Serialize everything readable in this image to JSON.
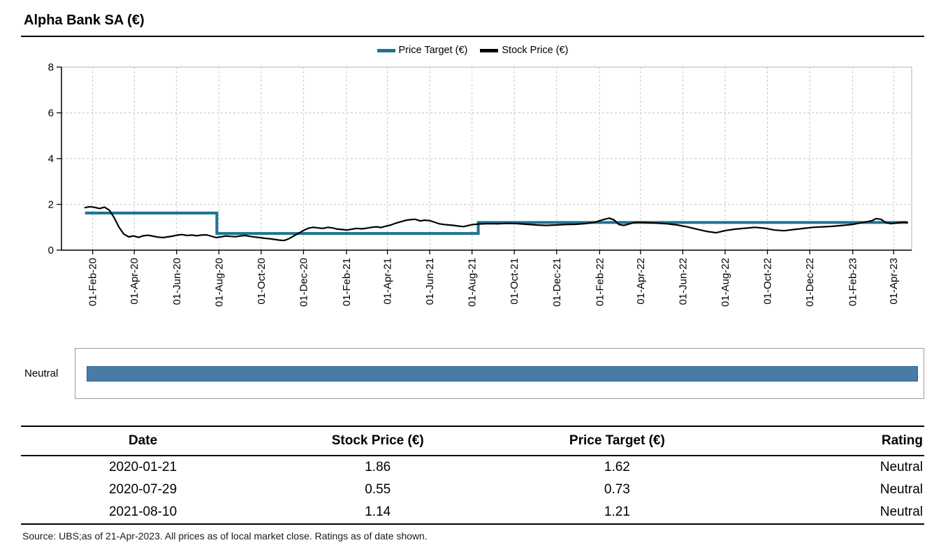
{
  "header": {
    "title": "Alpha Bank SA (€)"
  },
  "chart_data": {
    "type": "line",
    "title": "Alpha Bank SA (€)",
    "xlabel": "",
    "ylabel": "",
    "ylim": [
      0,
      8
    ],
    "y_ticks": [
      0,
      2,
      4,
      6,
      8
    ],
    "grid": true,
    "legend_position": "top-center",
    "x_domain": [
      "2019-12-18",
      "2023-04-27"
    ],
    "x_ticks": [
      {
        "date": "2020-02-01",
        "label": "01-Feb-20"
      },
      {
        "date": "2020-04-01",
        "label": "01-Apr-20"
      },
      {
        "date": "2020-06-01",
        "label": "01-Jun-20"
      },
      {
        "date": "2020-08-01",
        "label": "01-Aug-20"
      },
      {
        "date": "2020-10-01",
        "label": "01-Oct-20"
      },
      {
        "date": "2020-12-01",
        "label": "01-Dec-20"
      },
      {
        "date": "2021-02-01",
        "label": "01-Feb-21"
      },
      {
        "date": "2021-04-01",
        "label": "01-Apr-21"
      },
      {
        "date": "2021-06-01",
        "label": "01-Jun-21"
      },
      {
        "date": "2021-08-01",
        "label": "01-Aug-21"
      },
      {
        "date": "2021-10-01",
        "label": "01-Oct-21"
      },
      {
        "date": "2021-12-01",
        "label": "01-Dec-21"
      },
      {
        "date": "2022-02-01",
        "label": "01-Feb-22"
      },
      {
        "date": "2022-04-01",
        "label": "01-Apr-22"
      },
      {
        "date": "2022-06-01",
        "label": "01-Jun-22"
      },
      {
        "date": "2022-08-01",
        "label": "01-Aug-22"
      },
      {
        "date": "2022-10-01",
        "label": "01-Oct-22"
      },
      {
        "date": "2022-12-01",
        "label": "01-Dec-22"
      },
      {
        "date": "2023-02-01",
        "label": "01-Feb-23"
      },
      {
        "date": "2023-04-01",
        "label": "01-Apr-23"
      }
    ],
    "series": [
      {
        "name": "Price Target (€)",
        "color": "#1d7391",
        "style": "step",
        "line_width": 4,
        "points": [
          [
            "2020-01-21",
            1.62
          ],
          [
            "2020-07-29",
            0.73
          ],
          [
            "2021-08-10",
            1.21
          ],
          [
            "2023-04-21",
            1.21
          ]
        ]
      },
      {
        "name": "Stock Price (€)",
        "color": "#000000",
        "style": "line",
        "line_width": 2.2,
        "points": [
          [
            "2020-01-21",
            1.86
          ],
          [
            "2020-01-28",
            1.9
          ],
          [
            "2020-02-04",
            1.87
          ],
          [
            "2020-02-11",
            1.82
          ],
          [
            "2020-02-18",
            1.88
          ],
          [
            "2020-02-25",
            1.75
          ],
          [
            "2020-03-03",
            1.42
          ],
          [
            "2020-03-10",
            1.0
          ],
          [
            "2020-03-17",
            0.7
          ],
          [
            "2020-03-24",
            0.58
          ],
          [
            "2020-03-31",
            0.62
          ],
          [
            "2020-04-07",
            0.56
          ],
          [
            "2020-04-14",
            0.63
          ],
          [
            "2020-04-21",
            0.65
          ],
          [
            "2020-04-28",
            0.61
          ],
          [
            "2020-05-05",
            0.57
          ],
          [
            "2020-05-12",
            0.55
          ],
          [
            "2020-05-19",
            0.58
          ],
          [
            "2020-05-26",
            0.61
          ],
          [
            "2020-06-02",
            0.66
          ],
          [
            "2020-06-09",
            0.68
          ],
          [
            "2020-06-16",
            0.64
          ],
          [
            "2020-06-23",
            0.66
          ],
          [
            "2020-06-30",
            0.63
          ],
          [
            "2020-07-07",
            0.66
          ],
          [
            "2020-07-14",
            0.67
          ],
          [
            "2020-07-21",
            0.61
          ],
          [
            "2020-07-28",
            0.55
          ],
          [
            "2020-08-04",
            0.58
          ],
          [
            "2020-08-11",
            0.62
          ],
          [
            "2020-08-18",
            0.6
          ],
          [
            "2020-08-25",
            0.59
          ],
          [
            "2020-09-01",
            0.62
          ],
          [
            "2020-09-08",
            0.64
          ],
          [
            "2020-09-15",
            0.6
          ],
          [
            "2020-09-22",
            0.57
          ],
          [
            "2020-09-29",
            0.55
          ],
          [
            "2020-10-06",
            0.52
          ],
          [
            "2020-10-13",
            0.5
          ],
          [
            "2020-10-20",
            0.47
          ],
          [
            "2020-10-27",
            0.44
          ],
          [
            "2020-11-03",
            0.42
          ],
          [
            "2020-11-10",
            0.5
          ],
          [
            "2020-11-17",
            0.62
          ],
          [
            "2020-11-24",
            0.74
          ],
          [
            "2020-12-01",
            0.86
          ],
          [
            "2020-12-08",
            0.96
          ],
          [
            "2020-12-15",
            1.0
          ],
          [
            "2020-12-22",
            0.97
          ],
          [
            "2020-12-29",
            0.95
          ],
          [
            "2021-01-05",
            1.0
          ],
          [
            "2021-01-12",
            0.97
          ],
          [
            "2021-01-19",
            0.92
          ],
          [
            "2021-01-26",
            0.9
          ],
          [
            "2021-02-02",
            0.88
          ],
          [
            "2021-02-09",
            0.92
          ],
          [
            "2021-02-16",
            0.95
          ],
          [
            "2021-02-23",
            0.93
          ],
          [
            "2021-03-02",
            0.96
          ],
          [
            "2021-03-09",
            1.0
          ],
          [
            "2021-03-16",
            1.02
          ],
          [
            "2021-03-23",
            0.99
          ],
          [
            "2021-03-30",
            1.05
          ],
          [
            "2021-04-06",
            1.1
          ],
          [
            "2021-04-13",
            1.18
          ],
          [
            "2021-04-20",
            1.24
          ],
          [
            "2021-04-27",
            1.3
          ],
          [
            "2021-05-04",
            1.33
          ],
          [
            "2021-05-11",
            1.35
          ],
          [
            "2021-05-18",
            1.28
          ],
          [
            "2021-05-25",
            1.31
          ],
          [
            "2021-06-01",
            1.29
          ],
          [
            "2021-06-08",
            1.22
          ],
          [
            "2021-06-15",
            1.15
          ],
          [
            "2021-06-22",
            1.12
          ],
          [
            "2021-06-29",
            1.1
          ],
          [
            "2021-07-06",
            1.08
          ],
          [
            "2021-07-13",
            1.05
          ],
          [
            "2021-07-20",
            1.03
          ],
          [
            "2021-07-27",
            1.08
          ],
          [
            "2021-08-03",
            1.12
          ],
          [
            "2021-08-10",
            1.14
          ],
          [
            "2021-08-24",
            1.16
          ],
          [
            "2021-09-07",
            1.15
          ],
          [
            "2021-09-21",
            1.17
          ],
          [
            "2021-10-05",
            1.16
          ],
          [
            "2021-10-19",
            1.13
          ],
          [
            "2021-11-02",
            1.1
          ],
          [
            "2021-11-16",
            1.08
          ],
          [
            "2021-11-30",
            1.1
          ],
          [
            "2021-12-14",
            1.12
          ],
          [
            "2021-12-28",
            1.13
          ],
          [
            "2022-01-11",
            1.16
          ],
          [
            "2022-01-25",
            1.22
          ],
          [
            "2022-02-08",
            1.35
          ],
          [
            "2022-02-15",
            1.4
          ],
          [
            "2022-02-22",
            1.32
          ],
          [
            "2022-03-01",
            1.12
          ],
          [
            "2022-03-08",
            1.08
          ],
          [
            "2022-03-15",
            1.14
          ],
          [
            "2022-03-22",
            1.2
          ],
          [
            "2022-03-29",
            1.22
          ],
          [
            "2022-04-12",
            1.2
          ],
          [
            "2022-04-26",
            1.18
          ],
          [
            "2022-05-10",
            1.15
          ],
          [
            "2022-05-24",
            1.1
          ],
          [
            "2022-06-07",
            1.02
          ],
          [
            "2022-06-21",
            0.92
          ],
          [
            "2022-07-05",
            0.82
          ],
          [
            "2022-07-19",
            0.76
          ],
          [
            "2022-08-02",
            0.86
          ],
          [
            "2022-08-16",
            0.92
          ],
          [
            "2022-08-30",
            0.96
          ],
          [
            "2022-09-13",
            1.0
          ],
          [
            "2022-09-27",
            0.96
          ],
          [
            "2022-10-11",
            0.88
          ],
          [
            "2022-10-25",
            0.85
          ],
          [
            "2022-11-08",
            0.9
          ],
          [
            "2022-11-22",
            0.95
          ],
          [
            "2022-12-06",
            1.0
          ],
          [
            "2022-12-20",
            1.02
          ],
          [
            "2023-01-03",
            1.04
          ],
          [
            "2023-01-17",
            1.08
          ],
          [
            "2023-01-31",
            1.12
          ],
          [
            "2023-02-14",
            1.2
          ],
          [
            "2023-02-28",
            1.28
          ],
          [
            "2023-03-07",
            1.38
          ],
          [
            "2023-03-14",
            1.34
          ],
          [
            "2023-03-21",
            1.2
          ],
          [
            "2023-03-28",
            1.16
          ],
          [
            "2023-04-04",
            1.18
          ],
          [
            "2023-04-11",
            1.21
          ],
          [
            "2023-04-18",
            1.22
          ],
          [
            "2023-04-21",
            1.2
          ]
        ]
      }
    ]
  },
  "rating_bar": {
    "label": "Neutral",
    "color": "#4a7ba6",
    "border_color": "#2f6390"
  },
  "table": {
    "headers": [
      "Date",
      "Stock Price (€)",
      "Price Target (€)",
      "Rating"
    ],
    "rows": [
      [
        "2020-01-21",
        "1.86",
        "1.62",
        "Neutral"
      ],
      [
        "2020-07-29",
        "0.55",
        "0.73",
        "Neutral"
      ],
      [
        "2021-08-10",
        "1.14",
        "1.21",
        "Neutral"
      ]
    ]
  },
  "footer": {
    "source": "Source: UBS;as of 21-Apr-2023. All prices as of local market close. Ratings as of date shown."
  }
}
